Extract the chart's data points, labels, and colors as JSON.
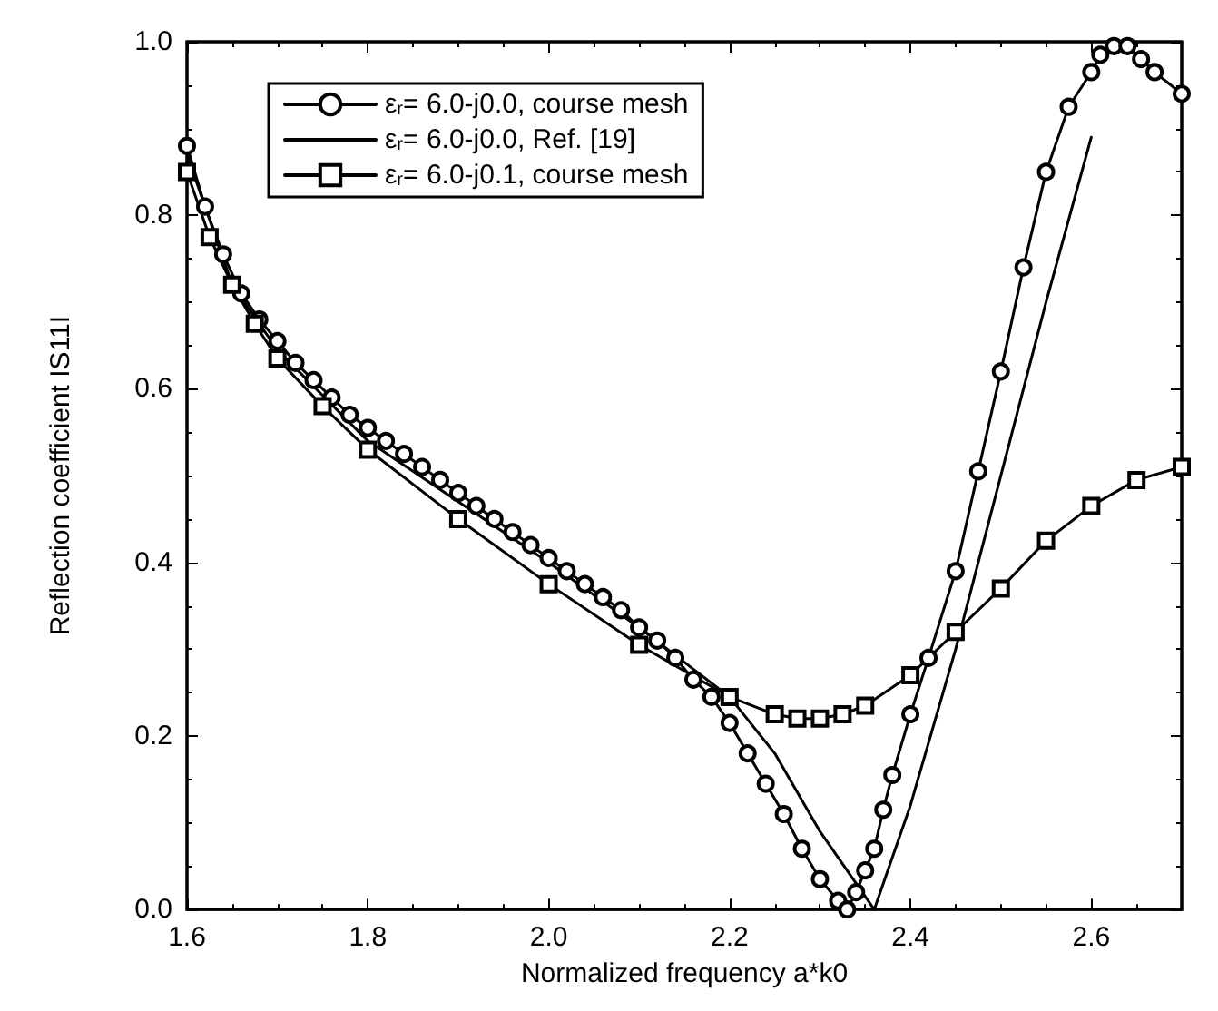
{
  "chart_data": {
    "type": "line",
    "xlabel": "Normalized frequency a*k0",
    "ylabel": "Reflection coefficient IS11I",
    "xlim": [
      1.6,
      2.7
    ],
    "xticks": [
      1.6,
      1.8,
      {
        "value": 2,
        "label": "2.0"
      },
      2.2,
      2.4,
      2.6
    ],
    "ylim": [
      0,
      1
    ],
    "yticks": [
      {
        "value": 0,
        "label": "0.0"
      },
      0.2,
      0.4,
      0.6,
      0.8,
      {
        "value": 1,
        "label": "1.0"
      }
    ],
    "legend": "top left",
    "grid": false,
    "line_style": "solid",
    "series": [
      {
        "name": "ε$_{r}$= 6.0-j0.0, course mesh",
        "color": "#000000",
        "marker": "circle",
        "x": [
          1.6,
          1.62,
          1.64,
          1.66,
          1.68,
          1.7,
          1.72,
          1.74,
          1.76,
          1.78,
          1.8,
          1.82,
          1.84,
          1.86,
          1.88,
          1.9,
          1.92,
          1.94,
          1.96,
          1.98,
          2.0,
          2.02,
          2.04,
          2.06,
          2.08,
          2.1,
          2.12,
          2.14,
          2.16,
          2.18,
          2.2,
          2.22,
          2.24,
          2.26,
          2.28,
          2.3,
          2.32,
          2.33,
          2.34,
          2.35,
          2.36,
          2.37,
          2.38,
          2.4,
          2.42,
          2.45,
          2.475,
          2.5,
          2.525,
          2.55,
          2.575,
          2.6,
          2.61,
          2.625,
          2.64,
          2.655,
          2.67,
          2.7
        ],
        "values": [
          0.88,
          0.81,
          0.755,
          0.71,
          0.68,
          0.655,
          0.63,
          0.61,
          0.59,
          0.57,
          0.555,
          0.54,
          0.525,
          0.51,
          0.495,
          0.48,
          0.465,
          0.45,
          0.435,
          0.42,
          0.405,
          0.39,
          0.375,
          0.36,
          0.345,
          0.325,
          0.31,
          0.29,
          0.265,
          0.245,
          0.215,
          0.18,
          0.145,
          0.11,
          0.07,
          0.035,
          0.01,
          0.0,
          0.02,
          0.045,
          0.07,
          0.115,
          0.155,
          0.225,
          0.29,
          0.39,
          0.505,
          0.62,
          0.74,
          0.85,
          0.925,
          0.965,
          0.985,
          0.995,
          0.995,
          0.98,
          0.965,
          0.94
        ]
      },
      {
        "name": "ε$_{r}$= 6.0-j0.0, Ref. [19]",
        "color": "#000000",
        "marker": "none",
        "x": [
          1.6,
          1.65,
          1.7,
          1.8,
          1.9,
          2.0,
          2.1,
          2.15,
          2.2,
          2.25,
          2.3,
          2.36,
          2.4,
          2.45,
          2.5,
          2.55,
          2.6
        ],
        "values": [
          0.87,
          0.72,
          0.645,
          0.54,
          0.47,
          0.4,
          0.325,
          0.285,
          0.245,
          0.18,
          0.09,
          0.0,
          0.12,
          0.3,
          0.5,
          0.7,
          0.89
        ]
      },
      {
        "name": "ε$_{r}$= 6.0-j0.1, course mesh",
        "color": "#000000",
        "marker": "square",
        "x": [
          1.6,
          1.625,
          1.65,
          1.675,
          1.7,
          1.75,
          1.8,
          1.9,
          2.0,
          2.1,
          2.2,
          2.25,
          2.275,
          2.3,
          2.325,
          2.35,
          2.4,
          2.45,
          2.5,
          2.55,
          2.6,
          2.65,
          2.7
        ],
        "values": [
          0.85,
          0.775,
          0.72,
          0.675,
          0.635,
          0.58,
          0.53,
          0.45,
          0.375,
          0.305,
          0.245,
          0.225,
          0.22,
          0.22,
          0.225,
          0.235,
          0.27,
          0.32,
          0.37,
          0.425,
          0.465,
          0.495,
          0.51
        ]
      }
    ]
  }
}
